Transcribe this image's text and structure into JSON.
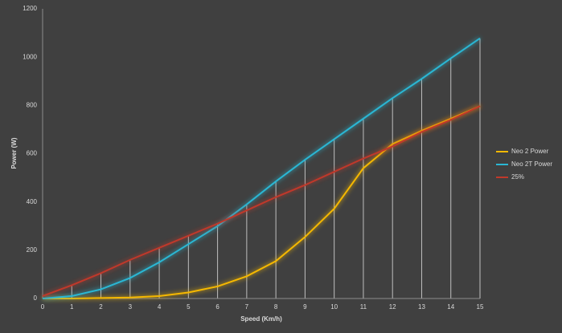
{
  "chart_data": {
    "type": "line",
    "x_label": "Speed (Km/h)",
    "y_label": "Power (W)",
    "x": [
      0,
      1,
      2,
      3,
      4,
      5,
      6,
      7,
      8,
      9,
      10,
      11,
      12,
      13,
      14,
      15
    ],
    "series": [
      {
        "name": "Neo 2 Power",
        "color": "#f5b800",
        "values": [
          0,
          0,
          2,
          4,
          10,
          25,
          50,
          92,
          155,
          255,
          372,
          540,
          640,
          695,
          745,
          797
        ]
      },
      {
        "name": "Neo 2T Power",
        "color": "#2ab7d4",
        "values": [
          0,
          10,
          38,
          85,
          150,
          225,
          300,
          390,
          485,
          575,
          660,
          745,
          830,
          910,
          995,
          1078
        ]
      },
      {
        "name": "25%",
        "color": "#c0392b",
        "values": [
          10,
          55,
          105,
          160,
          210,
          260,
          310,
          365,
          420,
          470,
          525,
          580,
          630,
          690,
          740,
          797
        ]
      }
    ],
    "xlim": [
      0,
      15
    ],
    "xticks": [
      0,
      1,
      2,
      3,
      4,
      5,
      6,
      7,
      8,
      9,
      10,
      11,
      12,
      13,
      14,
      15
    ],
    "ylim": [
      0,
      1200
    ],
    "yticks": [
      0,
      200,
      400,
      600,
      800,
      1000,
      1200
    ],
    "drop_lines": true,
    "legend": "right"
  }
}
